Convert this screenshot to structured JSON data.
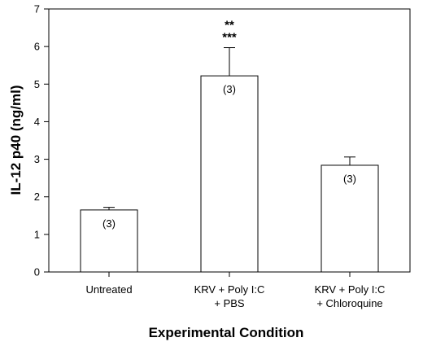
{
  "chart_data": {
    "type": "bar",
    "ylabel": "IL-12 p40 (ng/ml)",
    "xlabel": "Experimental Condition",
    "ylim": [
      0,
      7
    ],
    "yticks": [
      0,
      1,
      2,
      3,
      4,
      5,
      6,
      7
    ],
    "grid": false,
    "categories": [
      [
        "Untreated"
      ],
      [
        "KRV + Poly I:C",
        "+ PBS"
      ],
      [
        "KRV + Poly I:C",
        "+ Chloroquine"
      ]
    ],
    "values": [
      1.65,
      5.22,
      2.84
    ],
    "errors": [
      0.07,
      0.75,
      0.22
    ],
    "n_labels": [
      "(3)",
      "(3)",
      "(3)"
    ],
    "significance": [
      [],
      [
        "**",
        "***"
      ],
      []
    ]
  }
}
